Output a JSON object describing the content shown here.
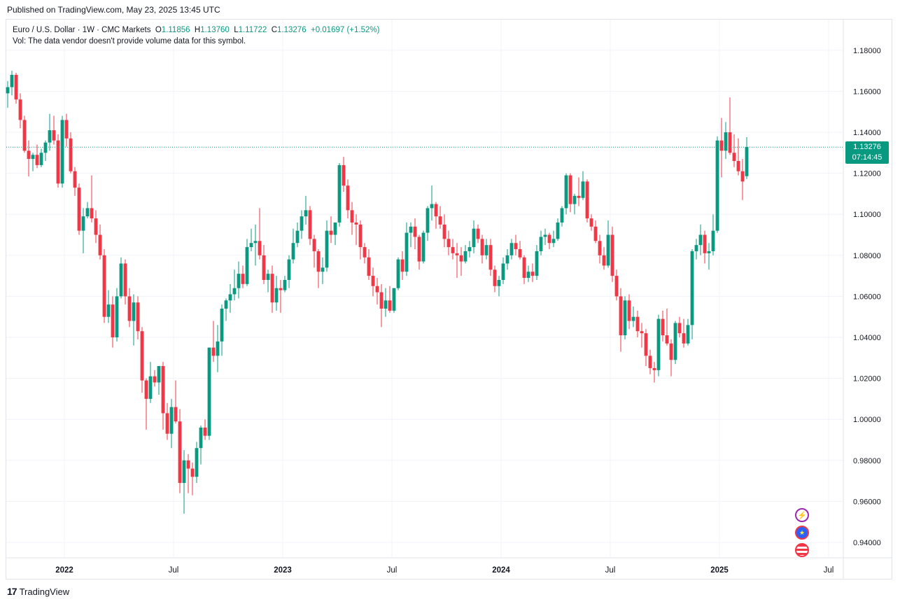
{
  "header": {
    "published": "Published on TradingView.com, May 23, 2025 13:45 UTC"
  },
  "legend": {
    "symbol": "Euro / U.S. Dollar · 1W · CMC Markets",
    "o_label": "O",
    "o": "1.11856",
    "h_label": "H",
    "h": "1.13760",
    "l_label": "L",
    "l": "1.11722",
    "c_label": "C",
    "c": "1.13276",
    "change": "+0.01697 (+1.52%)",
    "vol_note": "Vol: The data vendor doesn't provide volume data for this symbol."
  },
  "price_tag": {
    "price": "1.13276",
    "countdown": "07:14:45"
  },
  "footer": {
    "brand": "TradingView"
  },
  "events": [
    "flash-icon",
    "eu-flag-icon",
    "us-flag-icon"
  ],
  "colors": {
    "up": "#089981",
    "down": "#f23645",
    "grid": "#f0f3fa",
    "last_line": "#089981"
  },
  "chart_data": {
    "type": "candlestick",
    "timeframe": "1W",
    "ylim": [
      0.925,
      1.195
    ],
    "x_ticks": [
      {
        "label": "2022",
        "t": 0.0
      },
      {
        "label": "Jul",
        "t": 26.0
      },
      {
        "label": "2023",
        "t": 52.0
      },
      {
        "label": "Jul",
        "t": 78.0
      },
      {
        "label": "2024",
        "t": 104.0
      },
      {
        "label": "Jul",
        "t": 130.0
      },
      {
        "label": "2025",
        "t": 156.0
      },
      {
        "label": "Jul",
        "t": 182.0
      }
    ],
    "y_ticks": [
      "1.18000",
      "1.16000",
      "1.14000",
      "1.12000",
      "1.10000",
      "1.08000",
      "1.06000",
      "1.04000",
      "1.02000",
      "1.00000",
      "0.98000",
      "0.96000",
      "0.94000"
    ],
    "y_tick_values": [
      1.18,
      1.16,
      1.14,
      1.12,
      1.1,
      1.08,
      1.06,
      1.04,
      1.02,
      1.0,
      0.98,
      0.96,
      0.94
    ],
    "last_price": 1.13276,
    "t_start": -13.5,
    "candles": [
      [
        1.159,
        1.165,
        1.152,
        1.162
      ],
      [
        1.162,
        1.17,
        1.158,
        1.168
      ],
      [
        1.168,
        1.169,
        1.154,
        1.156
      ],
      [
        1.156,
        1.159,
        1.142,
        1.146
      ],
      [
        1.146,
        1.148,
        1.13,
        1.131
      ],
      [
        1.131,
        1.136,
        1.1185,
        1.127
      ],
      [
        1.127,
        1.13,
        1.121,
        1.129
      ],
      [
        1.129,
        1.134,
        1.1225,
        1.124
      ],
      [
        1.124,
        1.132,
        1.123,
        1.13
      ],
      [
        1.13,
        1.136,
        1.126,
        1.135
      ],
      [
        1.135,
        1.149,
        1.131,
        1.141
      ],
      [
        1.141,
        1.148,
        1.134,
        1.136
      ],
      [
        1.136,
        1.139,
        1.113,
        1.115
      ],
      [
        1.115,
        1.148,
        1.113,
        1.146
      ],
      [
        1.146,
        1.149,
        1.133,
        1.137
      ],
      [
        1.137,
        1.14,
        1.12,
        1.121
      ],
      [
        1.121,
        1.123,
        1.109,
        1.113
      ],
      [
        1.113,
        1.115,
        1.09,
        1.092
      ],
      [
        1.092,
        1.103,
        1.081,
        1.099
      ],
      [
        1.099,
        1.106,
        1.098,
        1.103
      ],
      [
        1.103,
        1.119,
        1.096,
        1.098
      ],
      [
        1.098,
        1.102,
        1.086,
        1.09
      ],
      [
        1.09,
        1.095,
        1.078,
        1.08
      ],
      [
        1.08,
        1.083,
        1.047,
        1.05
      ],
      [
        1.05,
        1.063,
        1.047,
        1.056
      ],
      [
        1.056,
        1.06,
        1.035,
        1.04
      ],
      [
        1.04,
        1.064,
        1.038,
        1.06
      ],
      [
        1.06,
        1.079,
        1.059,
        1.076
      ],
      [
        1.076,
        1.078,
        1.056,
        1.06
      ],
      [
        1.06,
        1.064,
        1.045,
        1.048
      ],
      [
        1.048,
        1.061,
        1.036,
        1.057
      ],
      [
        1.057,
        1.06,
        1.039,
        1.043
      ],
      [
        1.043,
        1.045,
        1.013,
        1.019
      ],
      [
        1.019,
        1.02,
        0.995,
        1.01
      ],
      [
        1.01,
        1.028,
        1.008,
        1.021
      ],
      [
        1.021,
        1.024,
        1.016,
        1.018
      ],
      [
        1.018,
        1.024,
        1.012,
        1.026
      ],
      [
        1.026,
        1.028,
        0.995,
        1.003
      ],
      [
        1.003,
        1.008,
        0.99,
        0.993
      ],
      [
        0.993,
        1.01,
        0.986,
        1.006
      ],
      [
        1.006,
        1.019,
        0.998,
        0.999
      ],
      [
        0.999,
        1.005,
        0.964,
        0.969
      ],
      [
        0.969,
        0.985,
        0.954,
        0.98
      ],
      [
        0.98,
        0.983,
        0.964,
        0.976
      ],
      [
        0.976,
        0.979,
        0.963,
        0.972
      ],
      [
        0.972,
        0.989,
        0.969,
        0.986
      ],
      [
        0.986,
        0.997,
        0.978,
        0.996
      ],
      [
        0.996,
        1.0,
        0.99,
        0.992
      ],
      [
        0.992,
        1.035,
        0.99,
        1.035
      ],
      [
        1.035,
        1.048,
        1.028,
        1.031
      ],
      [
        1.031,
        1.046,
        1.023,
        1.038
      ],
      [
        1.038,
        1.056,
        1.031,
        1.054
      ],
      [
        1.054,
        1.059,
        1.048,
        1.058
      ],
      [
        1.058,
        1.066,
        1.052,
        1.061
      ],
      [
        1.061,
        1.073,
        1.058,
        1.064
      ],
      [
        1.064,
        1.077,
        1.059,
        1.071
      ],
      [
        1.071,
        1.075,
        1.064,
        1.066
      ],
      [
        1.066,
        1.088,
        1.065,
        1.084
      ],
      [
        1.084,
        1.093,
        1.082,
        1.086
      ],
      [
        1.086,
        1.095,
        1.075,
        1.087
      ],
      [
        1.087,
        1.103,
        1.078,
        1.08
      ],
      [
        1.08,
        1.085,
        1.066,
        1.068
      ],
      [
        1.068,
        1.073,
        1.062,
        1.071
      ],
      [
        1.071,
        1.075,
        1.052,
        1.057
      ],
      [
        1.057,
        1.07,
        1.053,
        1.064
      ],
      [
        1.064,
        1.068,
        1.052,
        1.063
      ],
      [
        1.063,
        1.07,
        1.062,
        1.068
      ],
      [
        1.068,
        1.08,
        1.064,
        1.078
      ],
      [
        1.078,
        1.093,
        1.076,
        1.086
      ],
      [
        1.086,
        1.096,
        1.084,
        1.092
      ],
      [
        1.092,
        1.102,
        1.088,
        1.099
      ],
      [
        1.099,
        1.109,
        1.095,
        1.102
      ],
      [
        1.102,
        1.104,
        1.085,
        1.088
      ],
      [
        1.088,
        1.09,
        1.074,
        1.082
      ],
      [
        1.082,
        1.083,
        1.064,
        1.072
      ],
      [
        1.072,
        1.079,
        1.066,
        1.074
      ],
      [
        1.074,
        1.097,
        1.072,
        1.092
      ],
      [
        1.092,
        1.099,
        1.086,
        1.09
      ],
      [
        1.09,
        1.096,
        1.085,
        1.096
      ],
      [
        1.096,
        1.125,
        1.094,
        1.124
      ],
      [
        1.124,
        1.128,
        1.111,
        1.114
      ],
      [
        1.114,
        1.117,
        1.098,
        1.102
      ],
      [
        1.102,
        1.106,
        1.09,
        1.096
      ],
      [
        1.096,
        1.1,
        1.085,
        1.095
      ],
      [
        1.095,
        1.097,
        1.078,
        1.084
      ],
      [
        1.084,
        1.086,
        1.076,
        1.079
      ],
      [
        1.079,
        1.083,
        1.068,
        1.07
      ],
      [
        1.07,
        1.074,
        1.06,
        1.065
      ],
      [
        1.065,
        1.069,
        1.056,
        1.062
      ],
      [
        1.062,
        1.066,
        1.045,
        1.054
      ],
      [
        1.054,
        1.064,
        1.05,
        1.058
      ],
      [
        1.058,
        1.065,
        1.052,
        1.053
      ],
      [
        1.053,
        1.064,
        1.052,
        1.064
      ],
      [
        1.064,
        1.079,
        1.063,
        1.078
      ],
      [
        1.078,
        1.082,
        1.068,
        1.072
      ],
      [
        1.072,
        1.096,
        1.07,
        1.091
      ],
      [
        1.091,
        1.096,
        1.084,
        1.094
      ],
      [
        1.094,
        1.098,
        1.083,
        1.089
      ],
      [
        1.089,
        1.09,
        1.073,
        1.077
      ],
      [
        1.077,
        1.092,
        1.076,
        1.091
      ],
      [
        1.091,
        1.104,
        1.087,
        1.103
      ],
      [
        1.103,
        1.114,
        1.097,
        1.105
      ],
      [
        1.105,
        1.106,
        1.093,
        1.099
      ],
      [
        1.099,
        1.104,
        1.093,
        1.095
      ],
      [
        1.095,
        1.1,
        1.084,
        1.088
      ],
      [
        1.088,
        1.092,
        1.08,
        1.084
      ],
      [
        1.084,
        1.088,
        1.078,
        1.081
      ],
      [
        1.081,
        1.086,
        1.069,
        1.08
      ],
      [
        1.08,
        1.084,
        1.07,
        1.077
      ],
      [
        1.077,
        1.085,
        1.076,
        1.082
      ],
      [
        1.082,
        1.087,
        1.079,
        1.084
      ],
      [
        1.084,
        1.097,
        1.081,
        1.093
      ],
      [
        1.093,
        1.095,
        1.086,
        1.088
      ],
      [
        1.088,
        1.09,
        1.076,
        1.08
      ],
      [
        1.08,
        1.088,
        1.078,
        1.085
      ],
      [
        1.085,
        1.088,
        1.07,
        1.073
      ],
      [
        1.073,
        1.075,
        1.062,
        1.065
      ],
      [
        1.065,
        1.07,
        1.06,
        1.068
      ],
      [
        1.068,
        1.079,
        1.066,
        1.076
      ],
      [
        1.076,
        1.083,
        1.073,
        1.08
      ],
      [
        1.08,
        1.088,
        1.078,
        1.086
      ],
      [
        1.086,
        1.09,
        1.08,
        1.083
      ],
      [
        1.083,
        1.087,
        1.078,
        1.079
      ],
      [
        1.079,
        1.08,
        1.066,
        1.069
      ],
      [
        1.069,
        1.075,
        1.067,
        1.072
      ],
      [
        1.072,
        1.076,
        1.067,
        1.07
      ],
      [
        1.07,
        1.085,
        1.068,
        1.082
      ],
      [
        1.082,
        1.092,
        1.08,
        1.089
      ],
      [
        1.089,
        1.093,
        1.085,
        1.09
      ],
      [
        1.09,
        1.091,
        1.083,
        1.086
      ],
      [
        1.086,
        1.092,
        1.084,
        1.088
      ],
      [
        1.088,
        1.098,
        1.087,
        1.096
      ],
      [
        1.096,
        1.104,
        1.094,
        1.103
      ],
      [
        1.103,
        1.12,
        1.1,
        1.119
      ],
      [
        1.119,
        1.12,
        1.101,
        1.105
      ],
      [
        1.105,
        1.11,
        1.1,
        1.109
      ],
      [
        1.109,
        1.118,
        1.104,
        1.108
      ],
      [
        1.108,
        1.121,
        1.107,
        1.116
      ],
      [
        1.116,
        1.117,
        1.096,
        1.098
      ],
      [
        1.098,
        1.1,
        1.092,
        1.094
      ],
      [
        1.094,
        1.097,
        1.086,
        1.087
      ],
      [
        1.087,
        1.09,
        1.076,
        1.08
      ],
      [
        1.08,
        1.084,
        1.073,
        1.075
      ],
      [
        1.075,
        1.097,
        1.074,
        1.09
      ],
      [
        1.09,
        1.094,
        1.067,
        1.07
      ],
      [
        1.07,
        1.073,
        1.058,
        1.06
      ],
      [
        1.06,
        1.064,
        1.033,
        1.041
      ],
      [
        1.041,
        1.06,
        1.039,
        1.058
      ],
      [
        1.058,
        1.061,
        1.044,
        1.048
      ],
      [
        1.048,
        1.055,
        1.045,
        1.05
      ],
      [
        1.05,
        1.053,
        1.04,
        1.043
      ],
      [
        1.043,
        1.047,
        1.035,
        1.042
      ],
      [
        1.042,
        1.044,
        1.026,
        1.031
      ],
      [
        1.031,
        1.034,
        1.022,
        1.025
      ],
      [
        1.025,
        1.028,
        1.018,
        1.024
      ],
      [
        1.024,
        1.051,
        1.021,
        1.049
      ],
      [
        1.049,
        1.053,
        1.038,
        1.041
      ],
      [
        1.041,
        1.054,
        1.036,
        1.037
      ],
      [
        1.037,
        1.039,
        1.021,
        1.029
      ],
      [
        1.029,
        1.048,
        1.027,
        1.047
      ],
      [
        1.047,
        1.05,
        1.04,
        1.042
      ],
      [
        1.042,
        1.049,
        1.035,
        1.037
      ],
      [
        1.037,
        1.049,
        1.036,
        1.046
      ],
      [
        1.046,
        1.083,
        1.039,
        1.082
      ],
      [
        1.082,
        1.088,
        1.078,
        1.085
      ],
      [
        1.085,
        1.095,
        1.08,
        1.09
      ],
      [
        1.09,
        1.092,
        1.076,
        1.081
      ],
      [
        1.081,
        1.086,
        1.073,
        1.082
      ],
      [
        1.082,
        1.1,
        1.08,
        1.092
      ],
      [
        1.092,
        1.138,
        1.091,
        1.136
      ],
      [
        1.136,
        1.147,
        1.118,
        1.131
      ],
      [
        1.131,
        1.145,
        1.127,
        1.14
      ],
      [
        1.14,
        1.157,
        1.129,
        1.13
      ],
      [
        1.13,
        1.139,
        1.123,
        1.126
      ],
      [
        1.126,
        1.137,
        1.119,
        1.121
      ],
      [
        1.121,
        1.127,
        1.107,
        1.116
      ],
      [
        1.1186,
        1.1376,
        1.1172,
        1.1328
      ]
    ]
  }
}
